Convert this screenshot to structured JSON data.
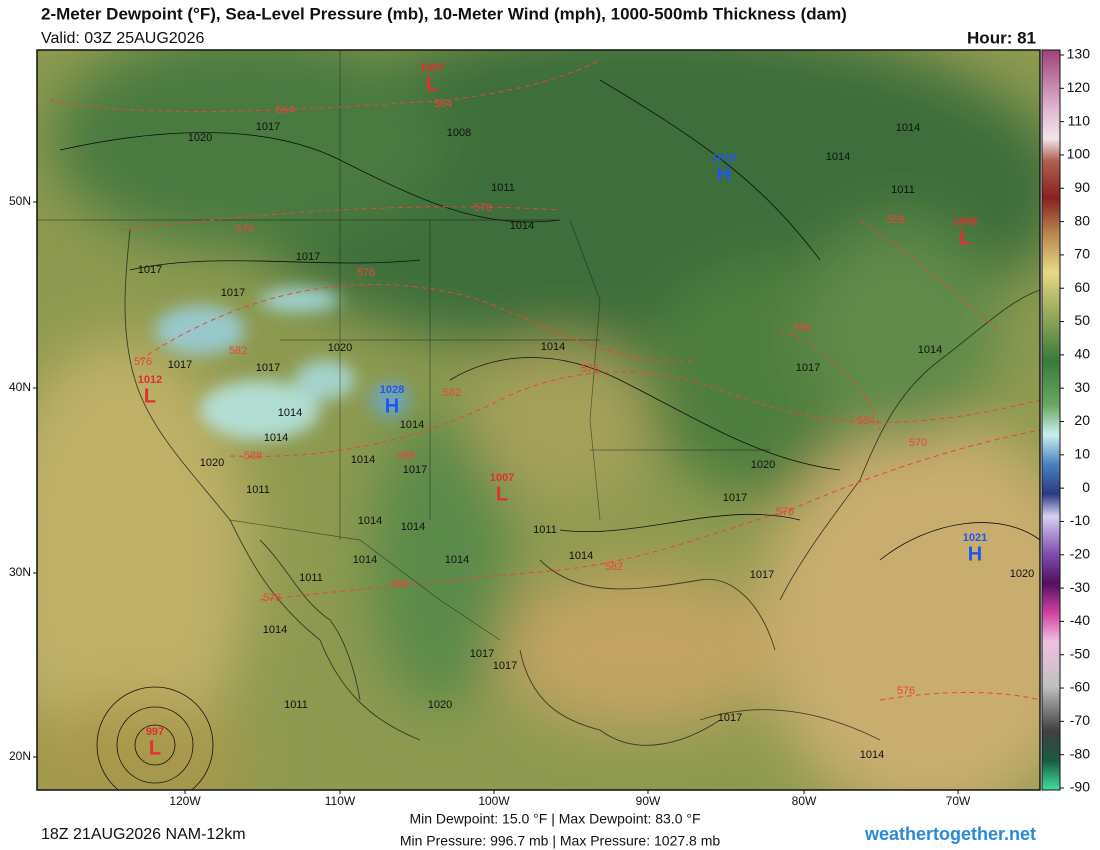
{
  "header": {
    "title": "2-Meter Dewpoint (°F), Sea-Level Pressure (mb), 10-Meter Wind (mph), 1000-500mb Thickness (dam)",
    "valid": "Valid: 03Z 25AUG2026",
    "hour": "Hour: 81"
  },
  "colorbar": {
    "lim": [
      -90,
      130
    ],
    "ticks": [
      130,
      120,
      110,
      100,
      90,
      80,
      70,
      60,
      50,
      40,
      30,
      20,
      10,
      0,
      -10,
      -20,
      -30,
      -40,
      -50,
      -60,
      -70,
      -80,
      -90
    ]
  },
  "axes": {
    "lat_labels": [
      "50N",
      "40N",
      "30N",
      "20N"
    ],
    "lon_labels": [
      "120W",
      "110W",
      "100W",
      "90W",
      "80W",
      "70W"
    ]
  },
  "centers": [
    {
      "letter": "L",
      "value": "1007"
    },
    {
      "letter": "H",
      "value": "1019"
    },
    {
      "letter": "L",
      "value": "1009"
    },
    {
      "letter": "H",
      "value": "1028"
    },
    {
      "letter": "L",
      "value": "1012"
    },
    {
      "letter": "L",
      "value": "1007"
    },
    {
      "letter": "H",
      "value": "1021"
    },
    {
      "letter": "L",
      "value": "997"
    }
  ],
  "high_color": "#2255ee",
  "low_color": "#e03030",
  "isobar_labels": [
    "1020",
    "1017",
    "1008",
    "1014",
    "1014",
    "1011",
    "1011",
    "1014",
    "1017",
    "1017",
    "1017",
    "1020",
    "1017",
    "1017",
    "1014",
    "1014",
    "1014",
    "1017",
    "1020",
    "1011",
    "1014",
    "1014",
    "1011",
    "1014",
    "1014",
    "1011",
    "1014",
    "1017",
    "1014",
    "1020",
    "1017",
    "1020",
    "1017",
    "1014",
    "1014",
    "1017",
    "1020",
    "1011",
    "1017",
    "1017",
    "1014",
    "1014"
  ],
  "thickness_labels": [
    "564",
    "564",
    "570",
    "570",
    "576",
    "558",
    "558",
    "582",
    "576",
    "576",
    "582",
    "564",
    "570",
    "588",
    "588",
    "576",
    "582",
    "588",
    "576",
    "576"
  ],
  "isobar_color": "#111111",
  "thickness_color": "#e8453c",
  "footer": {
    "run": "18Z 21AUG2026 NAM-12km",
    "dewpoint": "Min Dewpoint:  15.0 °F | Max Dewpoint:  83.0 °F",
    "pressure": "Min Pressure: 996.7 mb | Max Pressure: 1027.8 mb",
    "site": "weathertogether.net"
  }
}
